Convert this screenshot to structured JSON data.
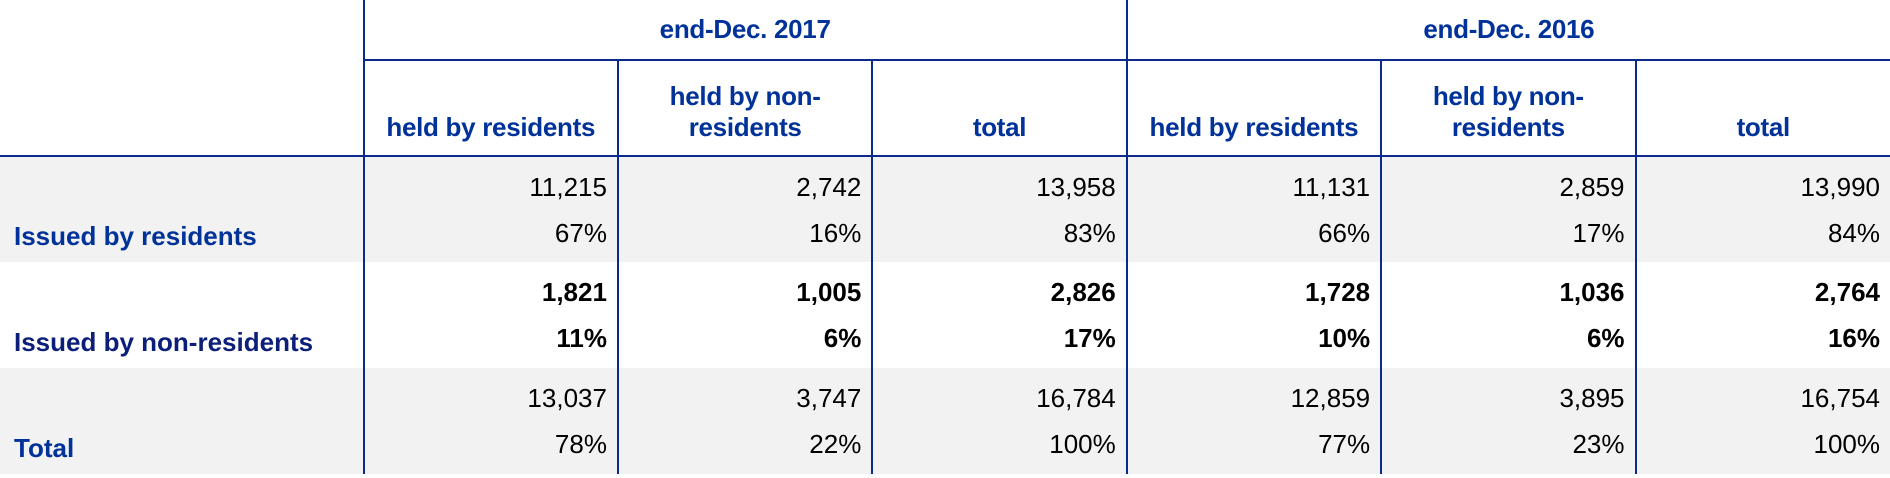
{
  "header": {
    "periods": [
      "end-Dec. 2017",
      "end-Dec. 2016"
    ],
    "columns": [
      "held by residents",
      "held by non-residents",
      "total",
      "held by residents",
      "held by non-residents",
      "total"
    ]
  },
  "rows": [
    {
      "label": "Issued by residents",
      "values": [
        "11,215",
        "2,742",
        "13,958",
        "11,131",
        "2,859",
        "13,990"
      ],
      "percents": [
        "67%",
        "16%",
        "83%",
        "66%",
        "17%",
        "84%"
      ]
    },
    {
      "label": "Issued by non-residents",
      "values": [
        "1,821",
        "1,005",
        "2,826",
        "1,728",
        "1,036",
        "2,764"
      ],
      "percents": [
        "11%",
        "6%",
        "17%",
        "10%",
        "6%",
        "16%"
      ]
    },
    {
      "label": "Total",
      "values": [
        "13,037",
        "3,747",
        "16,784",
        "12,859",
        "3,895",
        "16,754"
      ],
      "percents": [
        "78%",
        "22%",
        "100%",
        "77%",
        "23%",
        "100%"
      ]
    }
  ],
  "colors": {
    "header_text": "#003299",
    "border": "#0b2a8c",
    "shade": "#f2f2f2"
  }
}
